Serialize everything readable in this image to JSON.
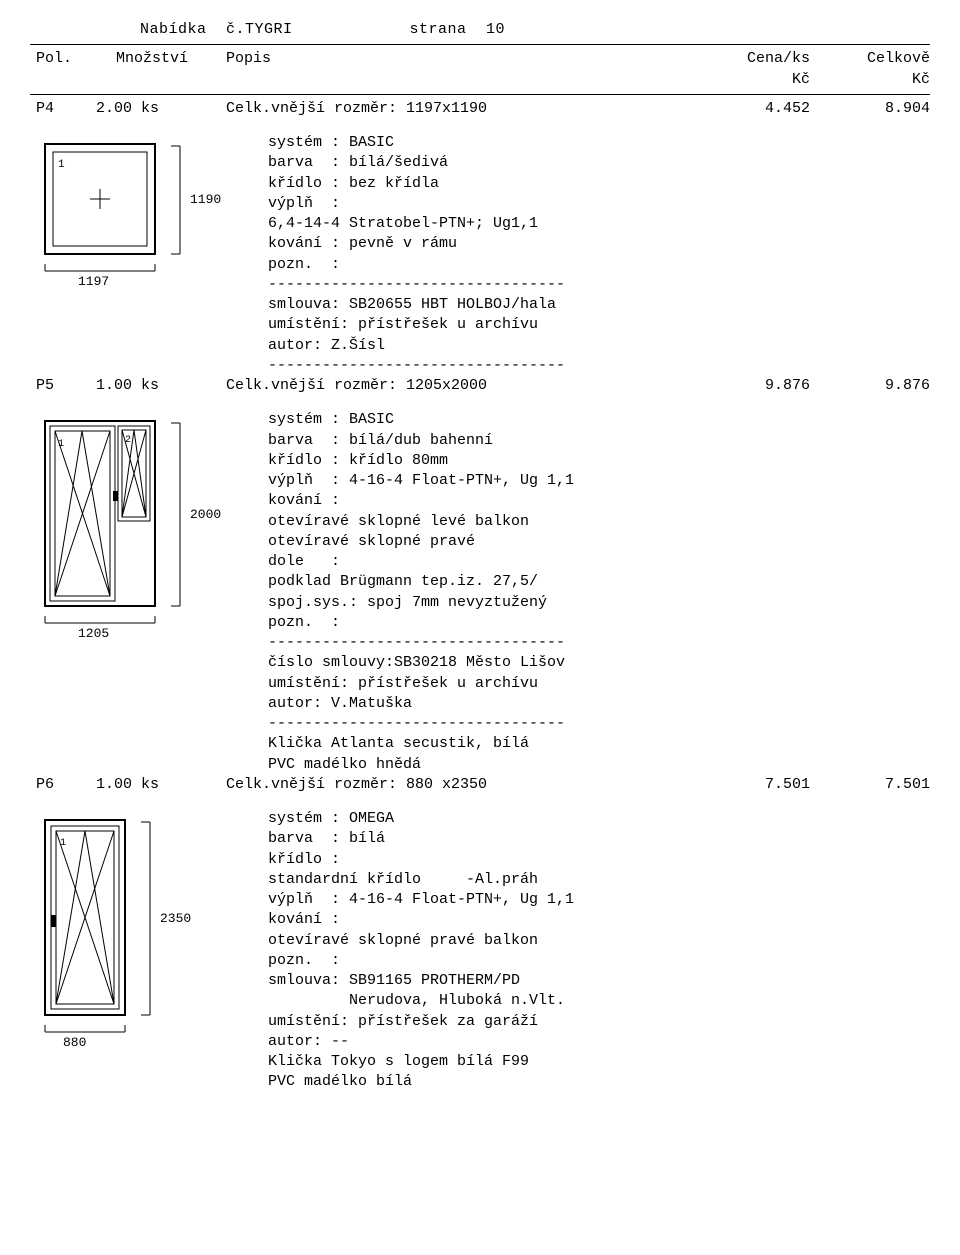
{
  "header": {
    "offer_label": "Nabídka č.TYGRI",
    "page_label": "strana 10"
  },
  "columns": {
    "pol": "Pol.",
    "mnozstvi": "Množství",
    "popis": "Popis",
    "cena": "Cena/ks",
    "celkove": "Celkově",
    "kc": "Kč"
  },
  "items": [
    {
      "pol": "P4",
      "qty": "2.00 ks",
      "title_prefix": "Celk.vnější rozměr: ",
      "dims": "1197x1190",
      "price": "4.452",
      "total": "8.904",
      "diagram": {
        "w_label": "1197",
        "h_label": "1190",
        "type": "fixed"
      },
      "lines": [
        "systém : BASIC",
        "barva  : bílá/šedivá",
        "křídlo : bez křídla",
        "výplň  :",
        "6,4-14-4 Stratobel-PTN+; Ug1,1",
        "kování : pevně v rámu",
        "pozn.  :",
        "---------------------------------",
        "smlouva: SB20655 HBT HOLBOJ/hala",
        "umístění: přístřešek u archívu",
        "autor: Z.Šísl",
        "---------------------------------"
      ]
    },
    {
      "pol": "P5",
      "qty": "1.00 ks",
      "title_prefix": "Celk.vnější rozměr: ",
      "dims": "1205x2000",
      "price": "9.876",
      "total": "9.876",
      "diagram": {
        "w_label": "1205",
        "h_label": "2000",
        "type": "door-with-side"
      },
      "lines": [
        "systém : BASIC",
        "barva  : bílá/dub bahenní",
        "křídlo : křídlo 80mm",
        "výplň  : 4-16-4 Float-PTN+, Ug 1,1",
        "kování :",
        "otevíravé sklopné levé balkon",
        "otevíravé sklopné pravé",
        "dole   :",
        "podklad Brügmann tep.iz. 27,5/",
        "spoj.sys.: spoj 7mm nevyztužený",
        "pozn.  :",
        "---------------------------------",
        "číslo smlouvy:SB30218 Město Lišov",
        "umístění: přístřešek u archívu",
        "autor: V.Matuška",
        "---------------------------------",
        "Klička Atlanta secustik, bílá",
        "PVC madélko hnědá"
      ]
    },
    {
      "pol": "P6",
      "qty": "1.00 ks",
      "title_prefix": "Celk.vnější rozměr: ",
      "dims": "880 x2350",
      "price": "7.501",
      "total": "7.501",
      "diagram": {
        "w_label": "880",
        "h_label": "2350",
        "type": "door-single"
      },
      "lines": [
        "systém : OMEGA",
        "barva  : bílá",
        "křídlo :",
        "standardní křídlo     -Al.práh",
        "výplň  : 4-16-4 Float-PTN+, Ug 1,1",
        "kování :",
        "otevíravé sklopné pravé balkon",
        "pozn.  :",
        "smlouva: SB91165 PROTHERM/PD",
        "         Nerudova, Hluboká n.Vlt.",
        "umístění: přístřešek za garáží",
        "autor: --",
        "Klička Tokyo s logem bílá F99",
        "PVC madélko bílá"
      ]
    }
  ]
}
